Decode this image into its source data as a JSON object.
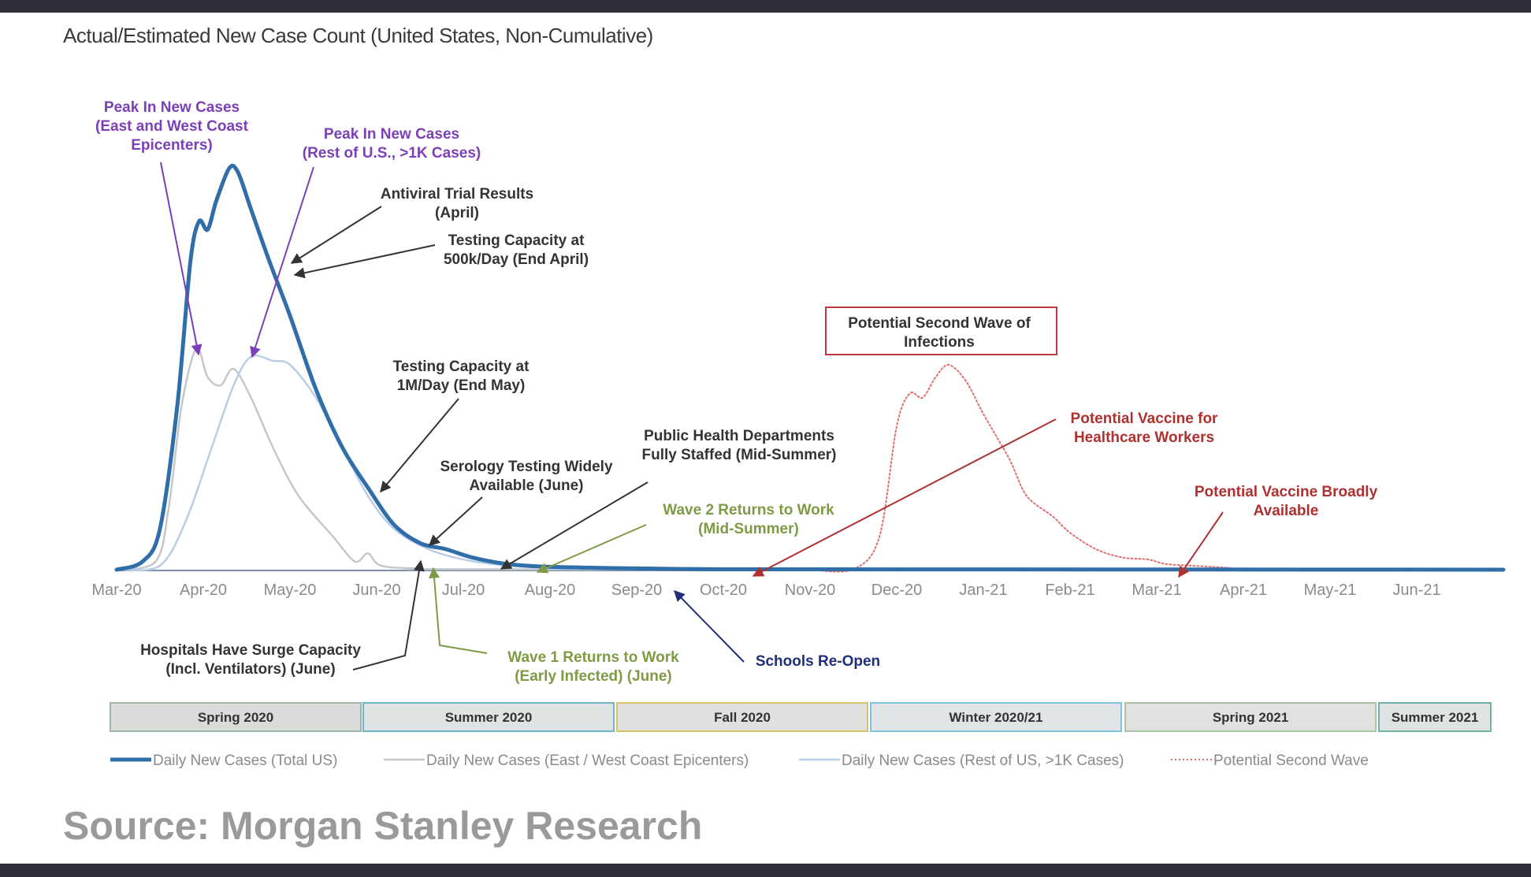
{
  "title": "Actual/Estimated New Case Count (United States, Non-Cumulative)",
  "source": "Source: Morgan Stanley Research",
  "colors": {
    "total": "#2f6ea8",
    "east_west": "#c4c8cc",
    "rest_us": "#b9cde6",
    "second_wave": "#e07070",
    "purple": "#7b3fb8",
    "dark": "#333333",
    "green": "#7f9a45",
    "navy": "#1f2f7a",
    "red": "#b03030"
  },
  "chart_data": {
    "type": "line",
    "title": "Actual/Estimated New Case Count (United States, Non-Cumulative)",
    "x_ticks": [
      "Mar-20",
      "Apr-20",
      "May-20",
      "Jun-20",
      "Jul-20",
      "Aug-20",
      "Sep-20",
      "Oct-20",
      "Nov-20",
      "Dec-20",
      "Jan-21",
      "Feb-21",
      "Mar-21",
      "Apr-21",
      "May-21",
      "Jun-21"
    ],
    "y_axis_visible": false,
    "y_units": "relative (unlabeled)",
    "series": [
      {
        "name": "Daily New Cases (Total US)",
        "style": "solid-thick",
        "color": "#2f6ea8",
        "points": [
          [
            0,
            0
          ],
          [
            0.3,
            0.02
          ],
          [
            0.5,
            0.1
          ],
          [
            0.7,
            0.4
          ],
          [
            0.85,
            0.75
          ],
          [
            0.95,
            0.85
          ],
          [
            1.05,
            0.83
          ],
          [
            1.15,
            0.9
          ],
          [
            1.3,
            0.98
          ],
          [
            1.4,
            0.97
          ],
          [
            1.55,
            0.88
          ],
          [
            1.75,
            0.76
          ],
          [
            2.0,
            0.62
          ],
          [
            2.3,
            0.44
          ],
          [
            2.6,
            0.3
          ],
          [
            2.9,
            0.2
          ],
          [
            3.2,
            0.11
          ],
          [
            3.5,
            0.065
          ],
          [
            3.8,
            0.05
          ],
          [
            4.1,
            0.03
          ],
          [
            4.5,
            0.014
          ],
          [
            5.0,
            0.007
          ],
          [
            6.0,
            0.003
          ],
          [
            7.0,
            0.001
          ],
          [
            8.0,
            0.001
          ],
          [
            16.0,
            0
          ]
        ]
      },
      {
        "name": "Daily New Cases (East / West Coast Epicenters)",
        "style": "solid-thin",
        "color": "#c4c8cc",
        "points": [
          [
            0,
            0
          ],
          [
            0.45,
            0.02
          ],
          [
            0.6,
            0.15
          ],
          [
            0.75,
            0.4
          ],
          [
            0.92,
            0.54
          ],
          [
            1.05,
            0.47
          ],
          [
            1.2,
            0.45
          ],
          [
            1.35,
            0.49
          ],
          [
            1.55,
            0.42
          ],
          [
            1.8,
            0.3
          ],
          [
            2.1,
            0.18
          ],
          [
            2.5,
            0.08
          ],
          [
            2.75,
            0.02
          ],
          [
            2.9,
            0.04
          ],
          [
            3.05,
            0.01
          ],
          [
            3.5,
            0.003
          ],
          [
            4.5,
            0.001
          ],
          [
            16.0,
            0
          ]
        ]
      },
      {
        "name": "Daily New Cases (Rest of US, >1K Cases)",
        "style": "solid-thin",
        "color": "#b9cde6",
        "points": [
          [
            0,
            0
          ],
          [
            0.5,
            0.01
          ],
          [
            0.8,
            0.12
          ],
          [
            1.1,
            0.3
          ],
          [
            1.35,
            0.45
          ],
          [
            1.55,
            0.52
          ],
          [
            1.8,
            0.51
          ],
          [
            2.0,
            0.5
          ],
          [
            2.3,
            0.42
          ],
          [
            2.6,
            0.3
          ],
          [
            2.9,
            0.18
          ],
          [
            3.2,
            0.1
          ],
          [
            3.6,
            0.05
          ],
          [
            4.0,
            0.025
          ],
          [
            4.5,
            0.01
          ],
          [
            5.0,
            0.004
          ],
          [
            6.0,
            0.001
          ],
          [
            16.0,
            0
          ]
        ]
      },
      {
        "name": "Potential Second Wave",
        "style": "dotted",
        "color": "#e07070",
        "points": [
          [
            8.0,
            0
          ],
          [
            8.5,
            0.001
          ],
          [
            8.8,
            0.08
          ],
          [
            9.0,
            0.35
          ],
          [
            9.15,
            0.43
          ],
          [
            9.3,
            0.42
          ],
          [
            9.45,
            0.47
          ],
          [
            9.6,
            0.5
          ],
          [
            9.8,
            0.46
          ],
          [
            10.0,
            0.38
          ],
          [
            10.3,
            0.27
          ],
          [
            10.5,
            0.18
          ],
          [
            10.8,
            0.13
          ],
          [
            11.0,
            0.09
          ],
          [
            11.3,
            0.05
          ],
          [
            11.6,
            0.03
          ],
          [
            11.9,
            0.025
          ],
          [
            12.1,
            0.014
          ],
          [
            12.4,
            0.01
          ],
          [
            12.8,
            0.005
          ],
          [
            13.2,
            0.002
          ],
          [
            16.0,
            0
          ]
        ]
      }
    ],
    "legend_placement": "bottom"
  },
  "annotations": [
    {
      "id": "peak-east-west",
      "lines": [
        "Peak In New Cases",
        "(East and West Coast",
        "Epicenters)"
      ],
      "color": "purple"
    },
    {
      "id": "peak-rest",
      "lines": [
        "Peak In New Cases",
        "(Rest of U.S., >1K Cases)"
      ],
      "color": "purple"
    },
    {
      "id": "antiviral",
      "lines": [
        "Antiviral  Trial Results",
        "(April)"
      ],
      "color": "dark"
    },
    {
      "id": "testing-500k",
      "lines": [
        "Testing Capacity at",
        "500k/Day  (End April)"
      ],
      "color": "dark"
    },
    {
      "id": "second-wave-box",
      "lines": [
        "Potential Second Wave of",
        "Infections"
      ],
      "color": "dark"
    },
    {
      "id": "testing-1m",
      "lines": [
        "Testing Capacity at",
        "1M/Day (End May)"
      ],
      "color": "dark"
    },
    {
      "id": "vaccine-hc",
      "lines": [
        "Potential Vaccine for",
        "Healthcare Workers"
      ],
      "color": "red"
    },
    {
      "id": "public-health",
      "lines": [
        "Public Health Departments",
        "Fully Staffed (Mid-Summer)"
      ],
      "color": "dark"
    },
    {
      "id": "serology",
      "lines": [
        "Serology Testing Widely",
        "Available (June)"
      ],
      "color": "dark"
    },
    {
      "id": "vaccine-broad",
      "lines": [
        "Potential Vaccine Broadly",
        "Available"
      ],
      "color": "red"
    },
    {
      "id": "wave2",
      "lines": [
        "Wave 2 Returns to Work",
        "(Mid-Summer)"
      ],
      "color": "green"
    },
    {
      "id": "hospitals",
      "lines": [
        "Hospitals Have Surge Capacity",
        "(Incl. Ventilators) (June)"
      ],
      "color": "dark"
    },
    {
      "id": "wave1",
      "lines": [
        "Wave 1 Returns to Work",
        "(Early Infected) (June)"
      ],
      "color": "green"
    },
    {
      "id": "schools",
      "lines": [
        "Schools Re-Open"
      ],
      "color": "navy"
    }
  ],
  "seasons": [
    "Spring 2020",
    "Summer 2020",
    "Fall 2020",
    "Winter 2020/21",
    "Spring 2021",
    "Summer 2021"
  ],
  "legend": [
    {
      "label": "Daily New Cases (Total US)",
      "style": "thick",
      "color": "#2f6ea8"
    },
    {
      "label": "Daily New Cases (East / West Coast Epicenters)",
      "style": "thin",
      "color": "#c4c8cc"
    },
    {
      "label": "Daily New Cases (Rest of US, >1K Cases)",
      "style": "thin",
      "color": "#b9cde6"
    },
    {
      "label": "Potential Second Wave",
      "style": "dotted",
      "color": "#e07070"
    }
  ]
}
